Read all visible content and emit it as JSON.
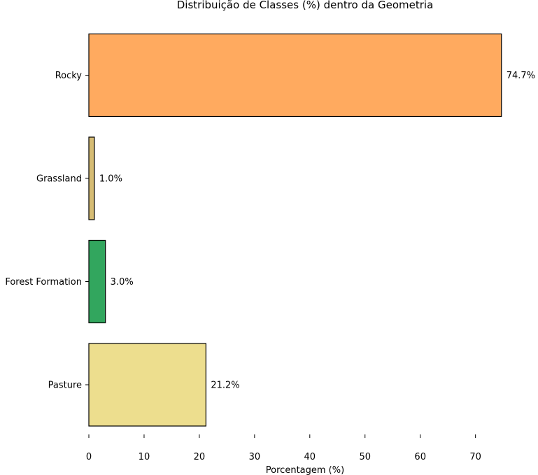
{
  "chart_data": {
    "type": "bar",
    "orientation": "horizontal",
    "title": "Distribuição de Classes (%) dentro da Geometria",
    "xlabel": "Porcentagem (%)",
    "ylabel": "",
    "xlim": [
      0,
      75
    ],
    "xticks": [
      0,
      10,
      20,
      30,
      40,
      50,
      60,
      70
    ],
    "grid": false,
    "legend": "none",
    "categories": [
      "Rocky",
      "Grassland",
      "Forest Formation",
      "Pasture"
    ],
    "values": [
      74.7,
      1.0,
      3.0,
      21.2
    ],
    "data_labels": [
      "74.7%",
      "1.0%",
      "3.0%",
      "21.2%"
    ],
    "colors": [
      "#ffaa5f",
      "#d6bc74",
      "#32a65e",
      "#edde8e"
    ],
    "bar_edge_color": "#000000"
  }
}
